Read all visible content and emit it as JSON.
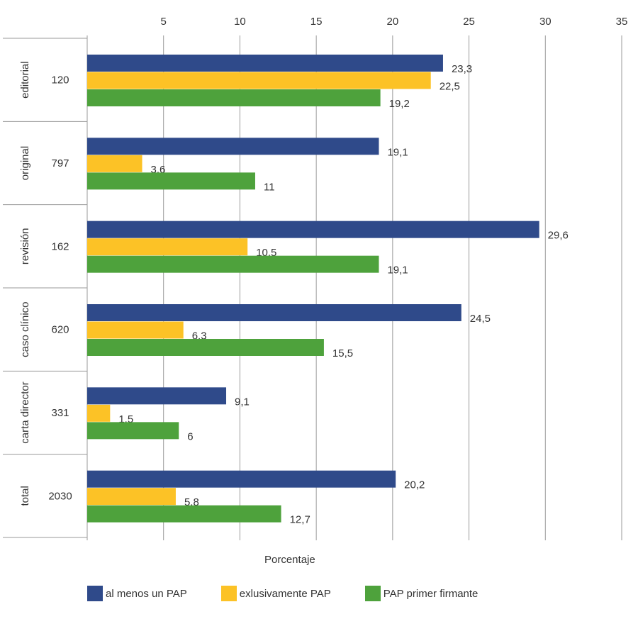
{
  "chart_data": {
    "type": "bar",
    "orientation": "horizontal",
    "xlabel": "Porcentaje",
    "xlim": [
      0,
      35
    ],
    "xticks": [
      5,
      10,
      15,
      20,
      25,
      30,
      35
    ],
    "grid": true,
    "legend_position": "bottom",
    "categories": [
      "editorial",
      "original",
      "revisión",
      "caso clínico",
      "carta director",
      "total"
    ],
    "counts": [
      "120",
      "797",
      "162",
      "620",
      "331",
      "2030"
    ],
    "series": [
      {
        "name": "al menos un PAP",
        "color": "#2f4a8a",
        "values": [
          23.3,
          19.1,
          29.6,
          24.5,
          9.1,
          20.2
        ],
        "labels": [
          "23,3",
          "19,1",
          "29,6",
          "24,5",
          "9,1",
          "20,2"
        ]
      },
      {
        "name": "exlusivamente PAP",
        "color": "#fcc226",
        "values": [
          22.5,
          3.6,
          10.5,
          6.3,
          1.5,
          5.8
        ],
        "labels": [
          "22,5",
          "3,6",
          "10,5",
          "6,3",
          "1,5",
          "5,8"
        ]
      },
      {
        "name": "PAP primer firmante",
        "color": "#4ea23c",
        "values": [
          19.2,
          11,
          19.1,
          15.5,
          6,
          12.7
        ],
        "labels": [
          "19,2",
          "11",
          "19,1",
          "15,5",
          "6",
          "12,7"
        ]
      }
    ]
  }
}
